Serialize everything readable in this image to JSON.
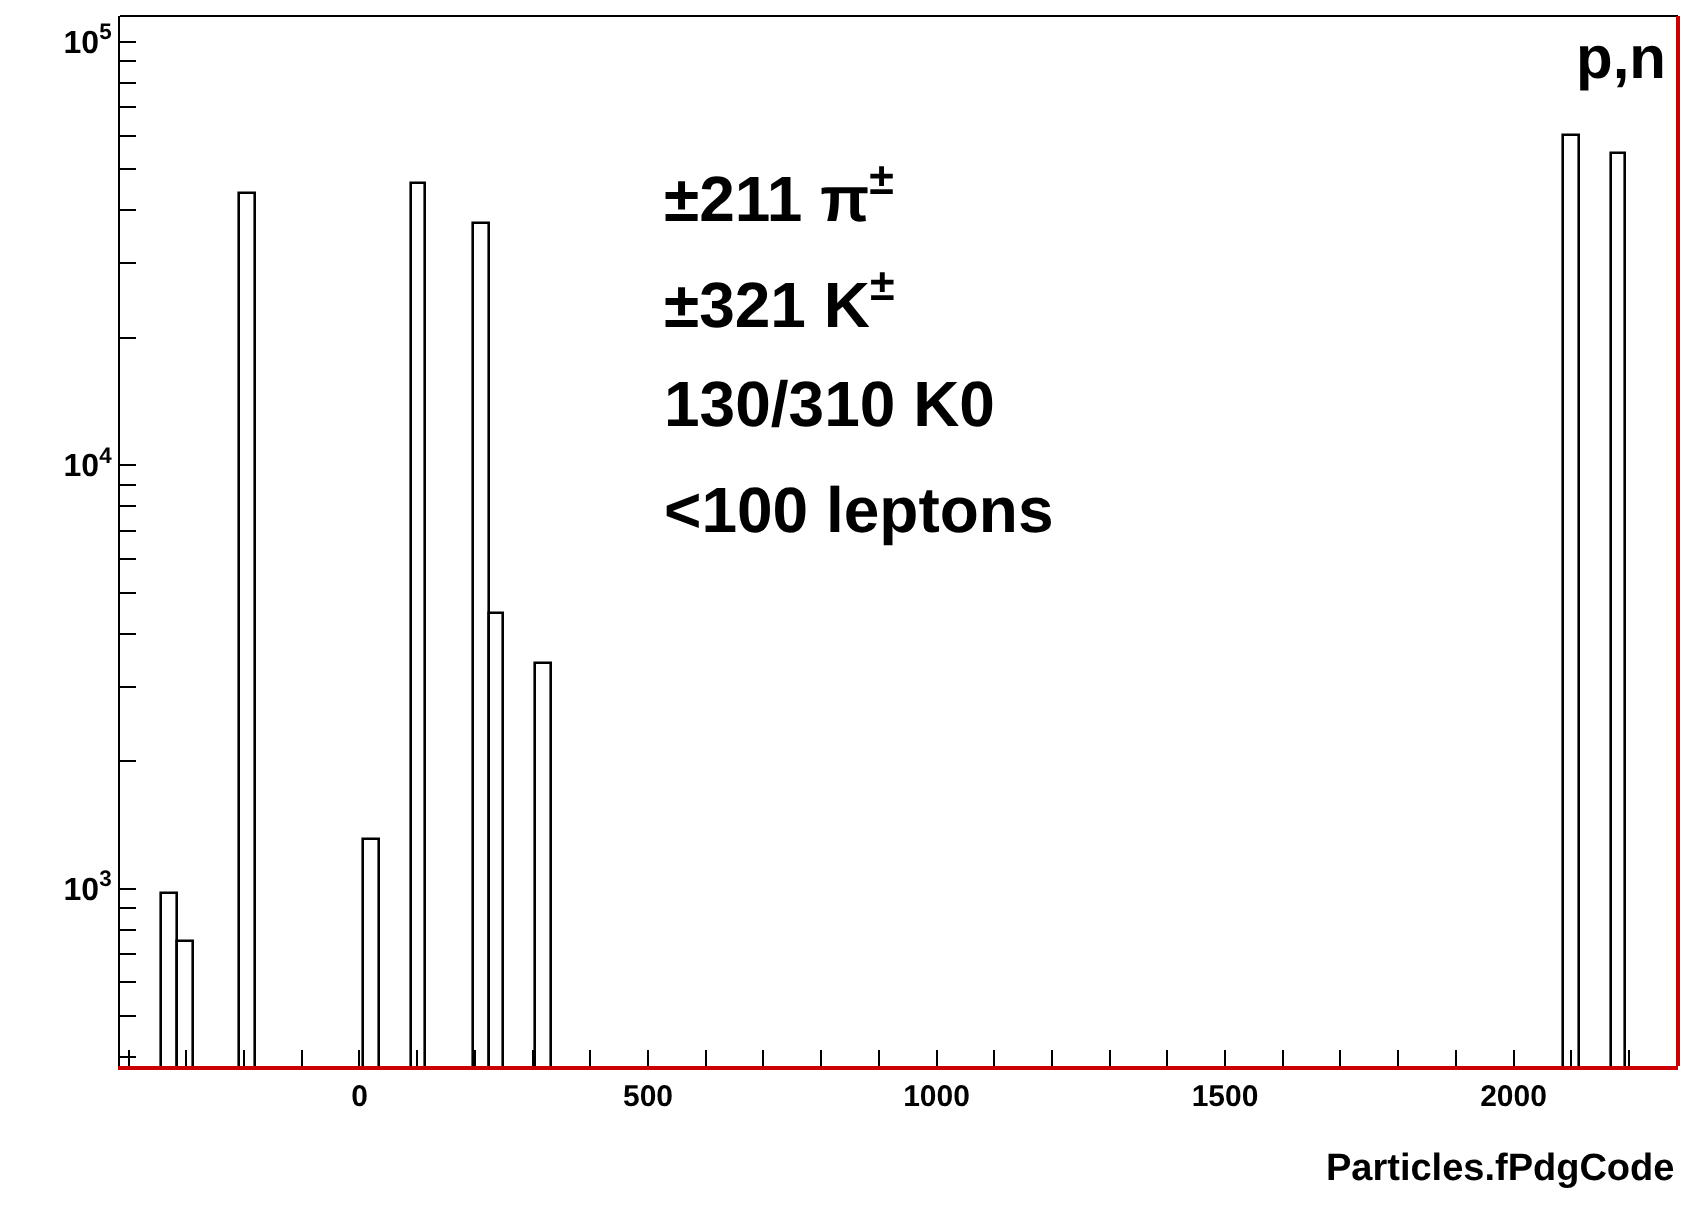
{
  "chart_data": {
    "type": "histogram",
    "xlabel": "Particles.fPdgCode",
    "bins": [
      -342,
      -315,
      -288,
      -261,
      -234,
      -207,
      -180,
      -153,
      -126,
      -99,
      -72,
      -45,
      -18,
      9,
      36,
      63,
      90,
      117,
      144,
      171,
      198,
      225,
      252,
      279,
      306,
      333,
      360,
      387,
      414,
      441,
      468,
      495,
      522,
      549,
      576,
      603,
      630,
      657,
      684,
      711,
      738,
      765,
      792,
      819,
      846,
      873,
      900,
      927,
      954,
      981,
      1008,
      1035,
      1062,
      1089,
      1116,
      1143,
      1170,
      1197,
      1224,
      1251,
      1278,
      1305,
      1332,
      1359,
      1386,
      1413,
      1440,
      1467,
      1494,
      1521,
      1548,
      1575,
      1602,
      1629,
      1656,
      1683,
      1710,
      1737,
      1764,
      1791,
      1818,
      1845,
      1872,
      1899,
      1926,
      1953,
      1980,
      2007,
      2034,
      2061,
      2088,
      2115,
      2142,
      2169,
      2196
    ],
    "values": [
      970,
      750,
      null,
      null,
      null,
      43900,
      null,
      null,
      null,
      null,
      null,
      null,
      null,
      1300,
      null,
      null,
      46000,
      null,
      null,
      null,
      37200,
      4430,
      null,
      null,
      3400,
      null,
      null,
      null,
      null,
      null,
      null,
      null,
      null,
      null,
      null,
      null,
      null,
      null,
      null,
      null,
      null,
      null,
      null,
      null,
      null,
      null,
      null,
      null,
      null,
      null,
      null,
      null,
      null,
      null,
      null,
      null,
      null,
      null,
      null,
      null,
      null,
      null,
      null,
      null,
      null,
      null,
      null,
      null,
      null,
      null,
      null,
      null,
      null,
      null,
      null,
      null,
      null,
      null,
      null,
      null,
      null,
      null,
      null,
      null,
      null,
      null,
      null,
      null,
      null,
      null,
      60000,
      null,
      null,
      54300
    ],
    "color": "#000000",
    "log": "y",
    "xlim": [
      -415,
      2285
    ],
    "ylim": [
      381,
      115000
    ],
    "xticks": [
      {
        "value": -400,
        "label": null
      },
      {
        "value": -300,
        "label": null
      },
      {
        "value": -200,
        "label": null
      },
      {
        "value": -100,
        "label": null
      },
      0,
      {
        "value": 100,
        "label": null
      },
      {
        "value": 200,
        "label": null
      },
      {
        "value": 300,
        "label": null
      },
      {
        "value": 400,
        "label": null
      },
      500,
      {
        "value": 600,
        "label": null
      },
      {
        "value": 700,
        "label": null
      },
      {
        "value": 800,
        "label": null
      },
      {
        "value": 900,
        "label": null
      },
      1000,
      {
        "value": 1100,
        "label": null
      },
      {
        "value": 1200,
        "label": null
      },
      {
        "value": 1300,
        "label": null
      },
      {
        "value": 1400,
        "label": null
      },
      1500,
      {
        "value": 1600,
        "label": null
      },
      {
        "value": 1700,
        "label": null
      },
      {
        "value": 1800,
        "label": null
      },
      {
        "value": 1900,
        "label": null
      },
      2000,
      {
        "value": 2100,
        "label": null
      },
      {
        "value": 2200,
        "label": null
      }
    ],
    "yticks": [
      {
        "value": 400,
        "label": null
      },
      {
        "value": 500,
        "label": null
      },
      {
        "value": 600,
        "label": null
      },
      {
        "value": 700,
        "label": null
      },
      {
        "value": 800,
        "label": null
      },
      {
        "value": 900,
        "label": null
      },
      {
        "value": 1000,
        "label": "10$^{3}$"
      },
      {
        "value": 2000,
        "label": null
      },
      {
        "value": 3000,
        "label": null
      },
      {
        "value": 4000,
        "label": null
      },
      {
        "value": 5000,
        "label": null
      },
      {
        "value": 6000,
        "label": null
      },
      {
        "value": 7000,
        "label": null
      },
      {
        "value": 8000,
        "label": null
      },
      {
        "value": 9000,
        "label": null
      },
      {
        "value": 10000,
        "label": "10$^{4}$"
      },
      {
        "value": 20000,
        "label": null
      },
      {
        "value": 30000,
        "label": null
      },
      {
        "value": 40000,
        "label": null
      },
      {
        "value": 50000,
        "label": null
      },
      {
        "value": 60000,
        "label": null
      },
      {
        "value": 70000,
        "label": null
      },
      {
        "value": 80000,
        "label": null
      },
      {
        "value": 90000,
        "label": null
      },
      {
        "value": 100000,
        "label": "10$^{5}$"
      }
    ],
    "annotations": [
      "p,n",
      "±211 π$^{±}$",
      "±321 K$^{±}$",
      "130/310 K0",
      "<100 leptons"
    ]
  }
}
